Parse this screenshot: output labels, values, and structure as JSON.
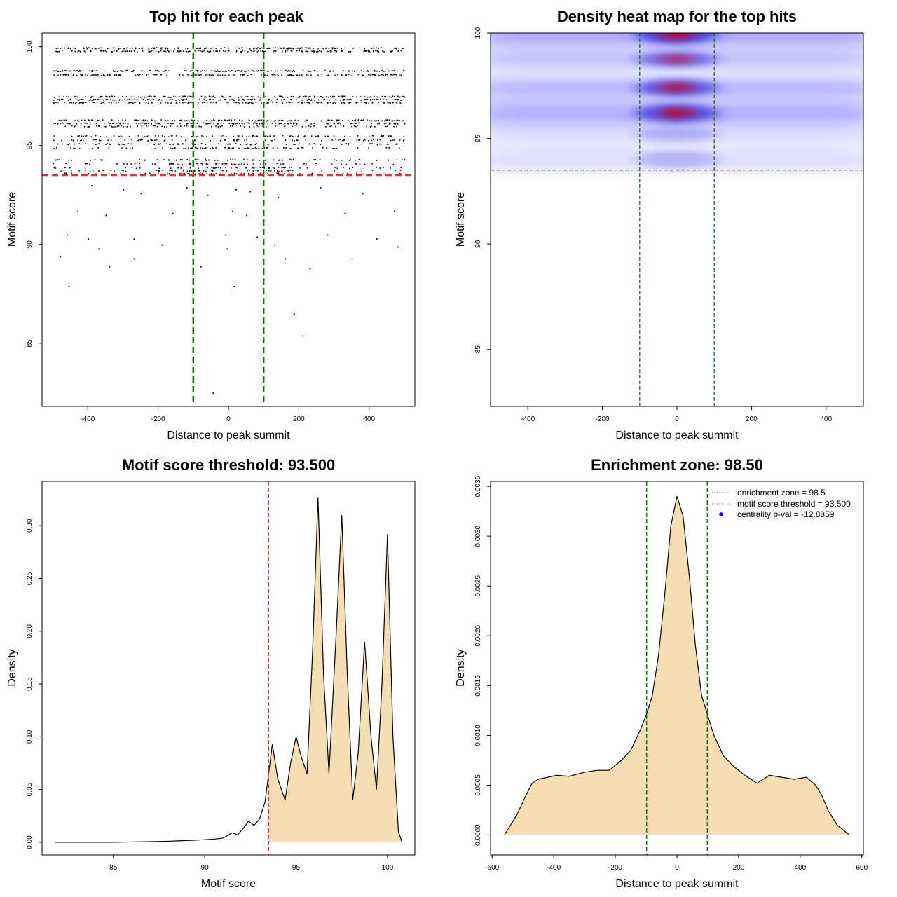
{
  "chart_data": [
    {
      "type": "scatter",
      "title": "Top hit for each peak",
      "xlabel": "Distance to peak summit",
      "ylabel": "Motif score",
      "xlim": [
        -530,
        530
      ],
      "ylim": [
        81.8,
        100.7
      ],
      "xticks": [
        -400,
        -200,
        0,
        200,
        400
      ],
      "yticks": [
        85,
        90,
        95,
        100
      ],
      "x_tick_labels": [
        "-400",
        "-200",
        "0",
        "200",
        "400"
      ],
      "y_tick_labels": [
        "85",
        "90",
        "95",
        "100"
      ],
      "vlines": [
        {
          "x": -100,
          "color": "#1a6b1a"
        },
        {
          "x": 100,
          "color": "#1a6b1a"
        }
      ],
      "hlines": [
        {
          "y": 93.5,
          "color": "#dd3333"
        }
      ],
      "score_levels_dense": [
        99.95,
        99.8,
        98.8,
        98.6,
        97.5,
        97.35,
        97.2,
        96.3,
        96.15,
        96.0,
        95.5,
        95.3,
        95.1,
        94.9,
        94.3,
        94.1,
        93.9,
        93.75,
        93.6
      ],
      "sparse_points": [
        {
          "x": -390,
          "y": 93.0
        },
        {
          "x": -300,
          "y": 92.8
        },
        {
          "x": -250,
          "y": 92.6
        },
        {
          "x": -120,
          "y": 92.9
        },
        {
          "x": -60,
          "y": 92.5
        },
        {
          "x": 20,
          "y": 92.8
        },
        {
          "x": 60,
          "y": 92.7
        },
        {
          "x": 140,
          "y": 92.4
        },
        {
          "x": 260,
          "y": 92.9
        },
        {
          "x": 380,
          "y": 92.6
        },
        {
          "x": -430,
          "y": 91.7
        },
        {
          "x": -350,
          "y": 91.5
        },
        {
          "x": -160,
          "y": 91.6
        },
        {
          "x": 10,
          "y": 91.7
        },
        {
          "x": 50,
          "y": 91.5
        },
        {
          "x": 330,
          "y": 91.6
        },
        {
          "x": 470,
          "y": 91.7
        },
        {
          "x": -460,
          "y": 90.5
        },
        {
          "x": -400,
          "y": 90.3
        },
        {
          "x": -270,
          "y": 90.3
        },
        {
          "x": -10,
          "y": 90.5
        },
        {
          "x": 80,
          "y": 90.4
        },
        {
          "x": 280,
          "y": 90.5
        },
        {
          "x": 420,
          "y": 90.3
        },
        {
          "x": -370,
          "y": 89.8
        },
        {
          "x": -190,
          "y": 90.0
        },
        {
          "x": -5,
          "y": 89.8
        },
        {
          "x": 130,
          "y": 90.0
        },
        {
          "x": 480,
          "y": 89.9
        },
        {
          "x": -480,
          "y": 89.4
        },
        {
          "x": -270,
          "y": 89.3
        },
        {
          "x": 160,
          "y": 89.3
        },
        {
          "x": 350,
          "y": 89.3
        },
        {
          "x": -340,
          "y": 88.9
        },
        {
          "x": -80,
          "y": 88.9
        },
        {
          "x": 230,
          "y": 88.8
        },
        {
          "x": -455,
          "y": 87.9
        },
        {
          "x": 15,
          "y": 87.9
        },
        {
          "x": 185,
          "y": 86.5
        },
        {
          "x": 210,
          "y": 85.4
        },
        {
          "x": -45,
          "y": 82.5
        }
      ]
    },
    {
      "type": "heatmap",
      "title": "Density heat map for the top hits",
      "xlabel": "Distance to peak summit",
      "ylabel": "Motif score",
      "xlim": [
        -500,
        500
      ],
      "ylim": [
        82.3,
        100.0
      ],
      "xticks": [
        -400,
        -200,
        0,
        200,
        400
      ],
      "yticks": [
        85,
        90,
        95,
        100
      ],
      "x_tick_labels": [
        "-400",
        "-200",
        "0",
        "200",
        "400"
      ],
      "y_tick_labels": [
        "85",
        "90",
        "95",
        "100"
      ],
      "vlines": [
        {
          "x": -100,
          "color": "#1a6b1a"
        },
        {
          "x": 100,
          "color": "#1a6b1a"
        }
      ],
      "hlines": [
        {
          "y": 93.5,
          "color": "#dd3333"
        }
      ],
      "density_bands": [
        {
          "y": 99.95,
          "w": 0.55,
          "peak": 1.0
        },
        {
          "y": 98.75,
          "w": 0.4,
          "peak": 0.75
        },
        {
          "y": 97.4,
          "w": 0.45,
          "peak": 0.88
        },
        {
          "y": 96.2,
          "w": 0.5,
          "peak": 0.95
        },
        {
          "y": 95.2,
          "w": 0.4,
          "peak": 0.35
        },
        {
          "y": 94.0,
          "w": 0.5,
          "peak": 0.32
        }
      ]
    },
    {
      "type": "area",
      "title": "Motif score threshold: 93.500",
      "xlabel": "Motif score",
      "ylabel": "Density",
      "xlim": [
        81.1,
        101.5
      ],
      "ylim": [
        -0.012,
        0.342
      ],
      "xticks": [
        85,
        90,
        95,
        100
      ],
      "yticks": [
        0,
        0.05,
        0.1,
        0.15,
        0.2,
        0.25,
        0.3
      ],
      "x_tick_labels": [
        "85",
        "90",
        "95",
        "100"
      ],
      "y_tick_labels": [
        "0.00",
        "0.05",
        "0.10",
        "0.15",
        "0.20",
        "0.25",
        "0.30"
      ],
      "vlines": [
        {
          "x": 93.5,
          "color": "#dd3333"
        }
      ],
      "fill_from_x": 93.5,
      "fill_color": "#f5deb3",
      "x": [
        81.8,
        85,
        88,
        89.5,
        90.5,
        91.0,
        91.5,
        91.8,
        92.1,
        92.4,
        92.7,
        93.0,
        93.3,
        93.5,
        93.7,
        94.0,
        94.4,
        94.7,
        95.0,
        95.3,
        95.6,
        95.9,
        96.2,
        96.5,
        96.8,
        97.2,
        97.5,
        97.8,
        98.1,
        98.4,
        98.75,
        99.1,
        99.4,
        99.7,
        100.0,
        100.3,
        100.6,
        100.8
      ],
      "y": [
        0.0,
        0.0,
        0.001,
        0.002,
        0.003,
        0.004,
        0.009,
        0.007,
        0.013,
        0.02,
        0.016,
        0.022,
        0.038,
        0.065,
        0.093,
        0.06,
        0.04,
        0.075,
        0.1,
        0.08,
        0.065,
        0.18,
        0.327,
        0.16,
        0.065,
        0.2,
        0.31,
        0.16,
        0.04,
        0.085,
        0.19,
        0.1,
        0.05,
        0.15,
        0.292,
        0.1,
        0.01,
        0.0
      ]
    },
    {
      "type": "area",
      "title": "Enrichment zone: 98.50",
      "xlabel": "Distance to peak summit",
      "ylabel": "Density",
      "xlim": [
        -605,
        605
      ],
      "ylim": [
        -0.0002,
        0.00355
      ],
      "xticks": [
        -600,
        -400,
        -200,
        0,
        200,
        400,
        600
      ],
      "yticks": [
        0,
        0.0005,
        0.001,
        0.0015,
        0.002,
        0.0025,
        0.003,
        0.0035
      ],
      "x_tick_labels": [
        "-600",
        "-400",
        "-200",
        "0",
        "200",
        "400",
        "600"
      ],
      "y_tick_labels": [
        "0.0000",
        "0.0005",
        "0.0010",
        "0.0015",
        "0.0020",
        "0.0025",
        "0.0030",
        "0.0035"
      ],
      "vlines": [
        {
          "x": -98.5,
          "color": "#1a6b1a"
        },
        {
          "x": 98.5,
          "color": "#1a6b1a"
        }
      ],
      "fill_color": "#f5deb3",
      "x": [
        -560,
        -520,
        -490,
        -470,
        -450,
        -420,
        -390,
        -350,
        -300,
        -260,
        -220,
        -180,
        -150,
        -120,
        -100,
        -80,
        -60,
        -40,
        -20,
        0,
        20,
        40,
        60,
        80,
        100,
        120,
        150,
        180,
        220,
        260,
        300,
        340,
        380,
        420,
        450,
        470,
        490,
        520,
        560
      ],
      "y": [
        0.0,
        0.0002,
        0.0004,
        0.00052,
        0.00056,
        0.00058,
        0.0006,
        0.00059,
        0.00063,
        0.00065,
        0.00065,
        0.00075,
        0.00085,
        0.00105,
        0.0012,
        0.0014,
        0.0018,
        0.0024,
        0.0031,
        0.0034,
        0.0032,
        0.0026,
        0.0019,
        0.0014,
        0.0012,
        0.001,
        0.0008,
        0.0007,
        0.0006,
        0.00052,
        0.0006,
        0.00058,
        0.00056,
        0.00058,
        0.0005,
        0.0004,
        0.00025,
        0.0001,
        0.0
      ],
      "legend": {
        "position": "top-right",
        "entries": [
          {
            "label": "enrichment zone = 98.5",
            "style": "dotted-line",
            "color": "#1a6b1a"
          },
          {
            "label": "motif score threshold = 93.500",
            "style": "dotted-line",
            "color": "#dd3333"
          },
          {
            "label": "centrality p-val = -12.8859",
            "style": "dot",
            "color": "#0000ff"
          }
        ]
      }
    }
  ]
}
